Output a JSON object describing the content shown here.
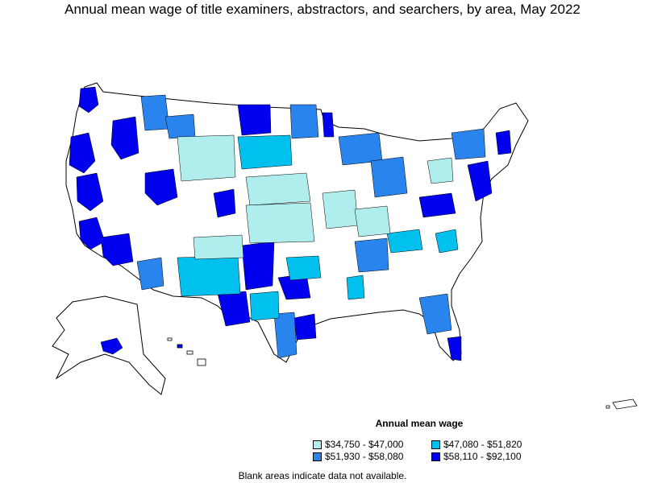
{
  "title": "Annual mean wage of title examiners, abstractors, and searchers, by area, May 2022",
  "legend": {
    "title": "Annual mean wage",
    "items": [
      {
        "label": "$34,750 - $47,000",
        "color": "#b0eeee"
      },
      {
        "label": "$47,080 - $51,820",
        "color": "#00c0ee"
      },
      {
        "label": "$51,930 - $58,080",
        "color": "#2a84ee"
      },
      {
        "label": "$58,110 - $92,100",
        "color": "#0000ee"
      }
    ]
  },
  "footnote": "Blank areas indicate data not available.",
  "colors": {
    "blank": "#ffffff",
    "border": "#000000"
  }
}
